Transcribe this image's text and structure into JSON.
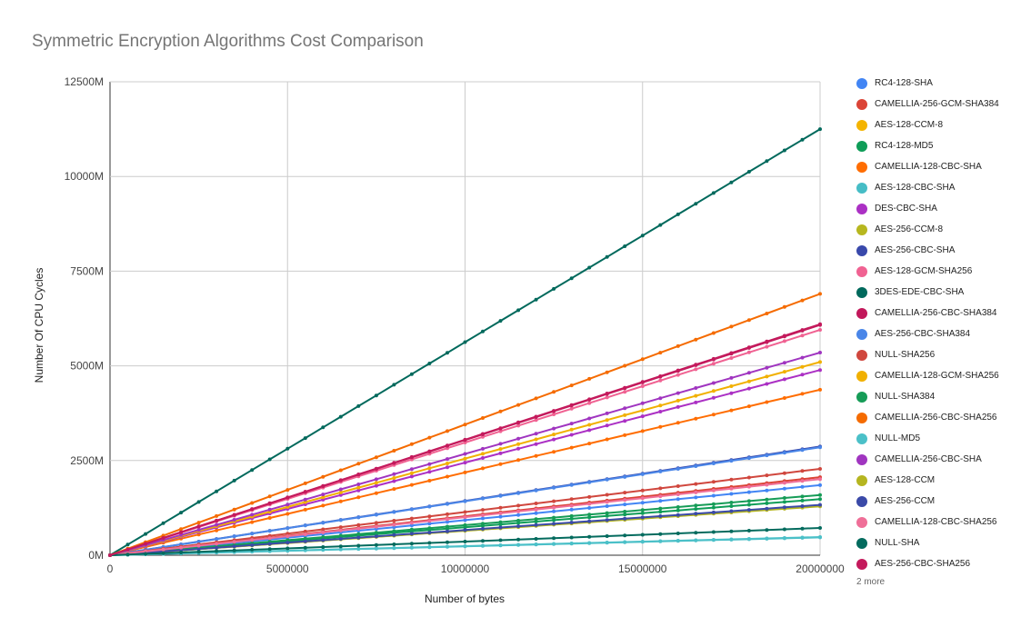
{
  "chart_data": {
    "type": "line",
    "title": "Symmetric Encryption Algorithms Cost Comparison",
    "xlabel": "Number of bytes",
    "ylabel": "Number Of CPU Cycles",
    "xlim": [
      0,
      20000000
    ],
    "ylim": [
      0,
      12500000000
    ],
    "x_ticks": [
      0,
      5000000,
      10000000,
      15000000,
      20000000
    ],
    "x_tick_labels": [
      "0",
      "5000000",
      "10000000",
      "15000000",
      "20000000"
    ],
    "y_ticks": [
      0,
      2500000000,
      5000000000,
      7500000000,
      10000000000,
      12500000000
    ],
    "y_tick_labels": [
      "0M",
      "2500M",
      "5000M",
      "7500M",
      "10000M",
      "12500M"
    ],
    "grid": true,
    "legend_position": "right",
    "legend_more": "2 more",
    "x": [
      0,
      500000,
      1000000,
      1500000,
      2000000,
      2500000,
      3000000,
      3500000,
      4000000,
      4500000,
      5000000,
      5500000,
      6000000,
      6500000,
      7000000,
      7500000,
      8000000,
      8500000,
      9000000,
      9500000,
      10000000,
      10500000,
      11000000,
      11500000,
      12000000,
      12500000,
      13000000,
      13500000,
      14000000,
      14500000,
      15000000,
      15500000,
      16000000,
      16500000,
      17000000,
      17500000,
      18000000,
      18500000,
      19000000,
      19500000,
      20000000
    ],
    "series": [
      {
        "name": "RC4-128-SHA",
        "color": "#4285f4",
        "end_value": 1850000000
      },
      {
        "name": "CAMELLIA-256-GCM-SHA384",
        "color": "#db4437",
        "end_value": 2060000000
      },
      {
        "name": "AES-128-CCM-8",
        "color": "#f4b400",
        "end_value": 1310000000
      },
      {
        "name": "RC4-128-MD5",
        "color": "#0f9d58",
        "end_value": 1480000000
      },
      {
        "name": "CAMELLIA-128-CBC-SHA",
        "color": "#ff6d01",
        "end_value": 4370000000
      },
      {
        "name": "AES-128-CBC-SHA",
        "color": "#46bdc6",
        "end_value": 470000000
      },
      {
        "name": "DES-CBC-SHA",
        "color": "#ab30c4",
        "end_value": 4890000000
      },
      {
        "name": "AES-256-CCM-8",
        "color": "#b7b71f",
        "end_value": 1300000000
      },
      {
        "name": "AES-256-CBC-SHA",
        "color": "#3949ab",
        "end_value": 2870000000
      },
      {
        "name": "AES-128-GCM-SHA256",
        "color": "#f06292",
        "end_value": 5950000000
      },
      {
        "name": "3DES-EDE-CBC-SHA",
        "color": "#00695c",
        "end_value": 11250000000
      },
      {
        "name": "CAMELLIA-256-CBC-SHA384",
        "color": "#c2185b",
        "end_value": 6100000000
      },
      {
        "name": "AES-256-CBC-SHA384",
        "color": "#4a86e8",
        "end_value": 2850000000
      },
      {
        "name": "NULL-SHA256",
        "color": "#d0473e",
        "end_value": 2280000000
      },
      {
        "name": "CAMELLIA-128-GCM-SHA256",
        "color": "#f1b000",
        "end_value": 5100000000
      },
      {
        "name": "NULL-SHA384",
        "color": "#169c57",
        "end_value": 1590000000
      },
      {
        "name": "CAMELLIA-256-CBC-SHA256",
        "color": "#f56b00",
        "end_value": 6900000000
      },
      {
        "name": "NULL-MD5",
        "color": "#4bc0c8",
        "end_value": 480000000
      },
      {
        "name": "CAMELLIA-256-CBC-SHA",
        "color": "#a035c0",
        "end_value": 5350000000
      },
      {
        "name": "AES-128-CCM",
        "color": "#b5b520",
        "end_value": 1290000000
      },
      {
        "name": "AES-256-CCM",
        "color": "#3b4aa8",
        "end_value": 1330000000
      },
      {
        "name": "CAMELLIA-128-CBC-SHA256",
        "color": "#ef6f98",
        "end_value": 2010000000
      },
      {
        "name": "NULL-SHA",
        "color": "#046b5e",
        "end_value": 720000000
      },
      {
        "name": "AES-256-CBC-SHA256",
        "color": "#c41a5c",
        "end_value": 6080000000
      }
    ]
  }
}
